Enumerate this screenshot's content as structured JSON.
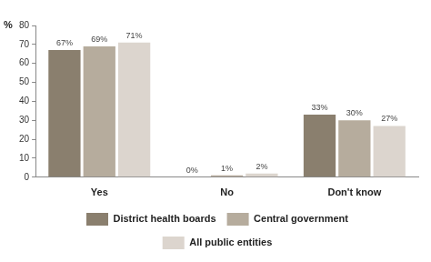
{
  "chart_data": {
    "type": "bar",
    "y_label": "%",
    "categories": [
      "Yes",
      "No",
      "Don't know"
    ],
    "series": [
      {
        "name": "District health boards",
        "color": "#8a7f6e",
        "values": [
          67,
          0,
          33
        ],
        "value_labels": [
          "67%",
          "0%",
          "33%"
        ]
      },
      {
        "name": "Central government",
        "color": "#b6ac9d",
        "values": [
          69,
          1,
          30
        ],
        "value_labels": [
          "69%",
          "1%",
          "30%"
        ]
      },
      {
        "name": "All public entities",
        "color": "#dcd5ce",
        "values": [
          71,
          2,
          27
        ],
        "value_labels": [
          "71%",
          "2%",
          "27%"
        ]
      }
    ],
    "ylim": [
      0,
      80
    ],
    "yticks": [
      0,
      10,
      20,
      30,
      40,
      50,
      60,
      70,
      80
    ],
    "grid": false,
    "legend": "bottom",
    "data_labels": true
  }
}
